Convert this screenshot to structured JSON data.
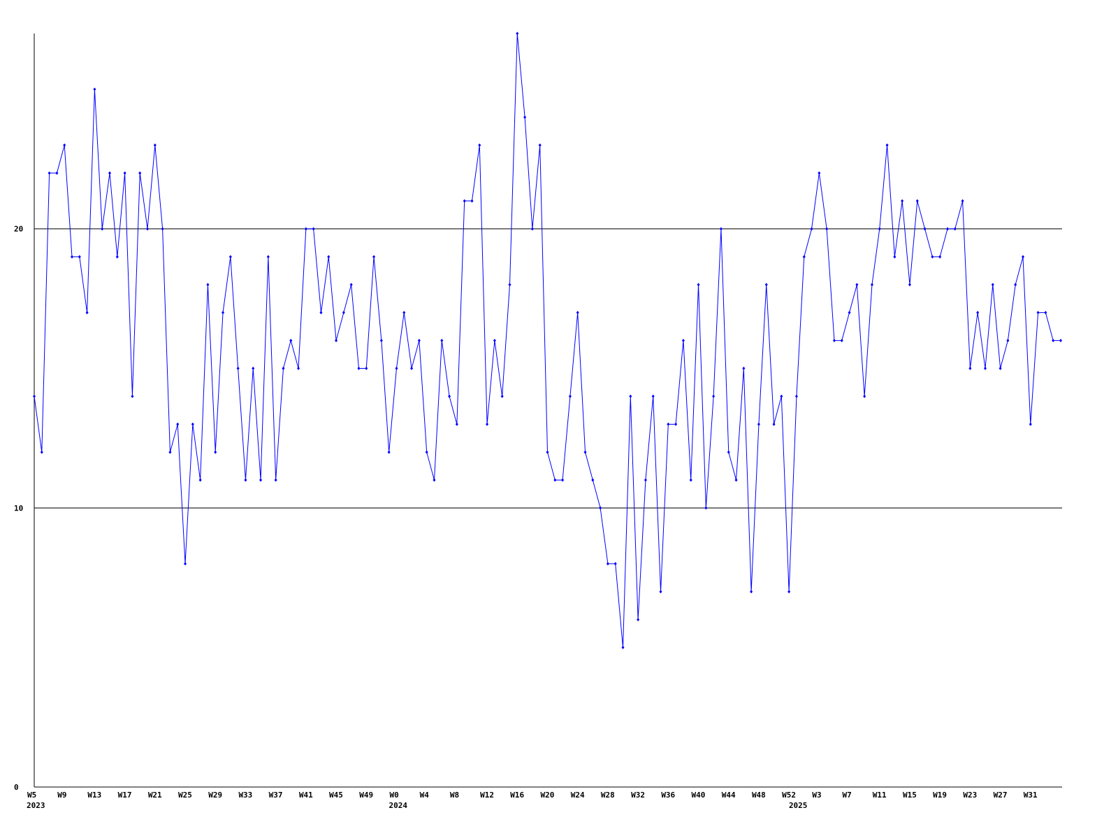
{
  "chart_data": {
    "type": "line",
    "categories": [
      "W5",
      null,
      null,
      null,
      "W9",
      null,
      null,
      null,
      "W13",
      null,
      null,
      null,
      "W17",
      null,
      null,
      null,
      "W21",
      null,
      null,
      null,
      "W25",
      null,
      null,
      null,
      "W29",
      null,
      null,
      null,
      "W33",
      null,
      null,
      null,
      "W37",
      null,
      null,
      null,
      "W41",
      null,
      null,
      null,
      "W45",
      null,
      null,
      null,
      "W49",
      null,
      null,
      null,
      "W0",
      null,
      null,
      null,
      "W4",
      null,
      null,
      null,
      "W8",
      null,
      null,
      null,
      "W12",
      null,
      null,
      null,
      "W16",
      null,
      null,
      null,
      "W20",
      null,
      null,
      null,
      "W24",
      null,
      null,
      null,
      "W28",
      null,
      null,
      null,
      "W32",
      null,
      null,
      null,
      "W36",
      null,
      null,
      null,
      "W40",
      null,
      null,
      null,
      "W44",
      null,
      null,
      null,
      "W48",
      null,
      null,
      null,
      "W52",
      null,
      null,
      null,
      "W3",
      null,
      null,
      null,
      "W7",
      null,
      null,
      null,
      "W11",
      null,
      null,
      null,
      "W15",
      null,
      null,
      null,
      "W19",
      null,
      null,
      null,
      "W23",
      null,
      null,
      null,
      "W27",
      null,
      null,
      null,
      "W31",
      null,
      null,
      null,
      null
    ],
    "year_labels": [
      "2023",
      "2024",
      "2025"
    ],
    "series": [
      {
        "color": "#0000ff",
        "values": [
          14,
          12,
          22,
          22,
          23,
          19,
          19,
          17,
          25,
          20,
          22,
          19,
          22,
          14,
          22,
          20,
          23,
          20,
          12,
          13,
          8,
          13,
          11,
          18,
          12,
          17,
          19,
          15,
          11,
          15,
          11,
          19,
          11,
          15,
          16,
          15,
          20,
          20,
          17,
          19,
          16,
          17,
          18,
          15,
          15,
          19,
          16,
          12,
          15,
          17,
          15,
          16,
          12,
          11,
          16,
          14,
          13,
          21,
          21,
          23,
          13,
          16,
          14,
          18,
          27,
          24,
          20,
          23,
          12,
          11,
          11,
          14,
          17,
          12,
          11,
          10,
          8,
          8,
          5,
          14,
          6,
          11,
          14,
          7,
          13,
          13,
          16,
          11,
          18,
          10,
          14,
          20,
          12,
          11,
          15,
          7,
          13,
          18,
          13,
          14,
          7,
          14,
          19,
          20,
          22,
          20,
          16,
          16,
          17,
          18,
          14,
          18,
          20,
          23,
          19,
          21,
          18,
          21,
          20,
          19,
          19,
          20,
          20,
          21,
          15,
          17,
          15,
          18,
          15,
          16,
          18,
          19,
          13,
          17,
          17,
          16,
          16
        ]
      }
    ],
    "ylim": [
      0,
      27
    ],
    "yticks": [
      0,
      10,
      20
    ],
    "grid": true
  }
}
